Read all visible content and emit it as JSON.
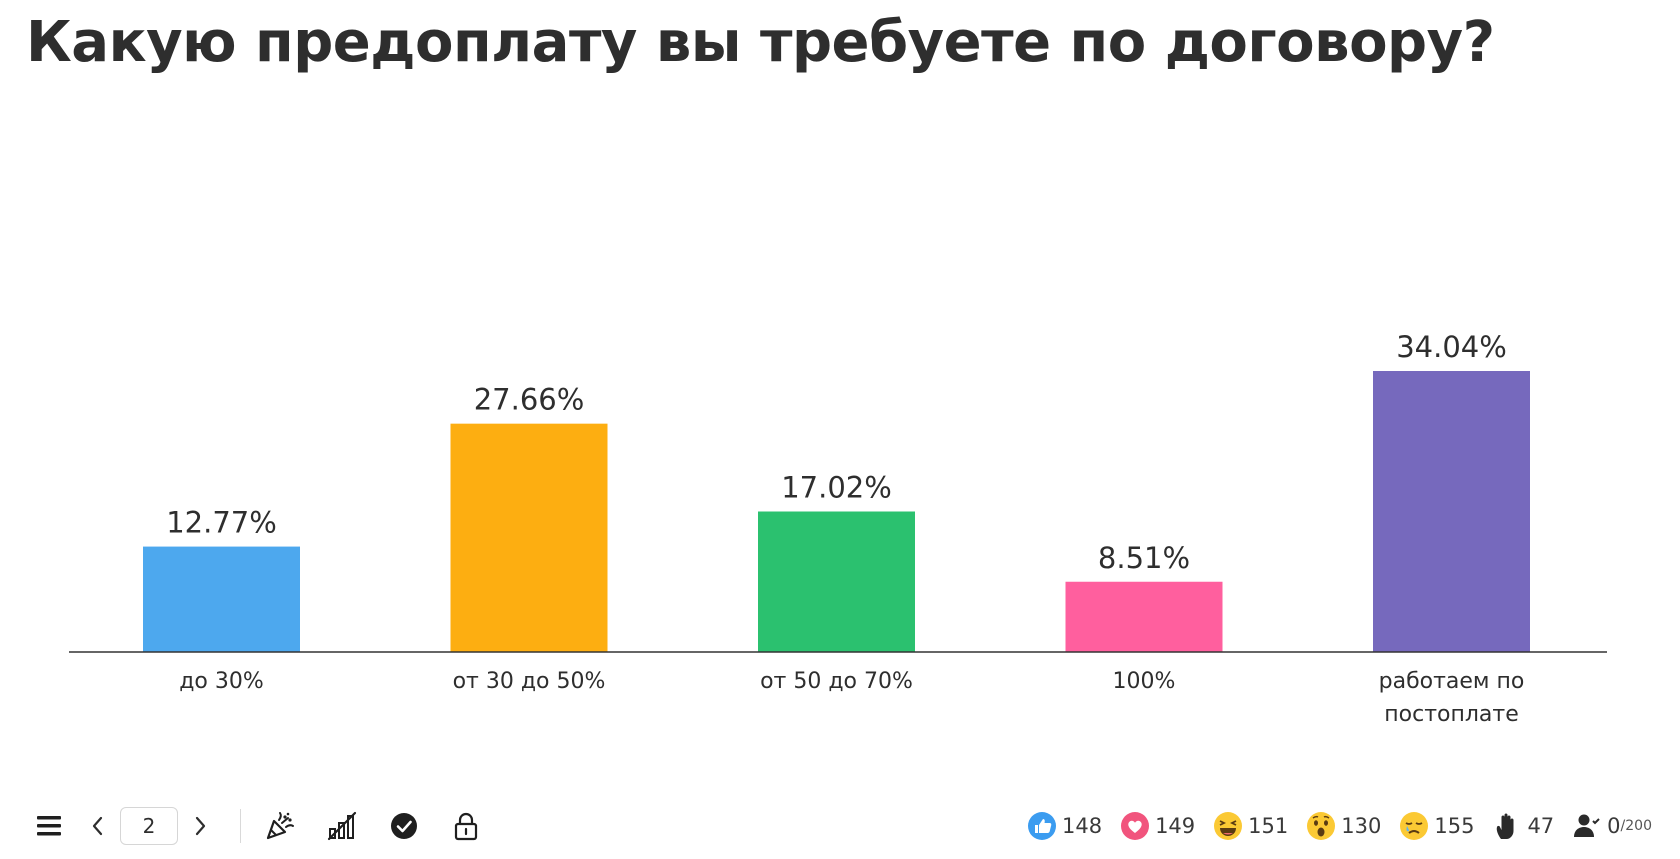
{
  "question": "Какую предоплату вы требуете по договору?",
  "chart_data": {
    "type": "bar",
    "categories": [
      "до 30%",
      "от 30 до 50%",
      "от 50 до 70%",
      "100%",
      "работаем по постоплате"
    ],
    "category_lines": [
      [
        "до 30%"
      ],
      [
        "от 30 до 50%"
      ],
      [
        "от 50 до 70%"
      ],
      [
        "100%"
      ],
      [
        "работаем по",
        "постоплате"
      ]
    ],
    "values": [
      12.77,
      27.66,
      17.02,
      8.51,
      34.04
    ],
    "value_labels": [
      "12.77%",
      "27.66%",
      "17.02%",
      "8.51%",
      "34.04%"
    ],
    "colors": [
      "#4da8ee",
      "#fdae11",
      "#2bc16f",
      "#ff5f9e",
      "#7669bd"
    ],
    "title": "",
    "xlabel": "",
    "ylabel": "",
    "ylim": [
      0,
      34.04
    ],
    "grid": false
  },
  "toolbar": {
    "current_page": "2",
    "icons": [
      "menu-icon",
      "chevron-left-icon",
      "chevron-right-icon",
      "confetti-icon",
      "results-hidden-icon",
      "check-circle-icon",
      "lock-icon"
    ]
  },
  "reactions": {
    "like": "148",
    "heart": "149",
    "laugh": "151",
    "wow": "130",
    "sad": "155",
    "hand": "47"
  },
  "participants": {
    "count": "0",
    "limit": "/200"
  }
}
